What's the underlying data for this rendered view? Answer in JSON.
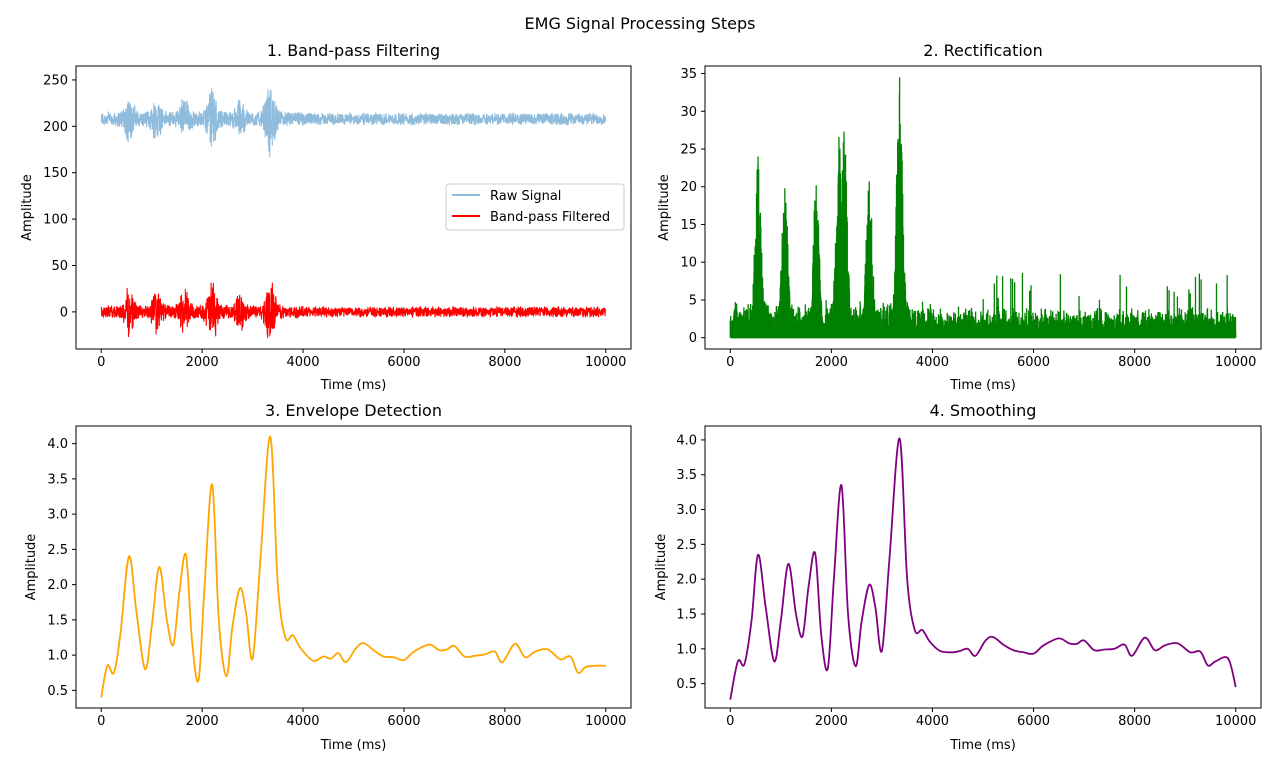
{
  "figure": {
    "suptitle": "EMG Signal Processing Steps"
  },
  "chart_data": [
    {
      "type": "line",
      "title": "1. Band-pass Filtering",
      "xlabel": "Time (ms)",
      "ylabel": "Amplitude",
      "xlim": [
        -500,
        10500
      ],
      "ylim": [
        -40,
        265
      ],
      "xticks": [
        "0",
        "2000",
        "4000",
        "6000",
        "8000",
        "10000"
      ],
      "yticks": [
        "0",
        "50",
        "100",
        "150",
        "200",
        "250"
      ],
      "legend": {
        "placement": "center-right"
      },
      "series": [
        {
          "name": "Raw Signal",
          "color": "#8fbcdc",
          "baseline": 208,
          "bursts": [
            [
              550,
              23
            ],
            [
              1100,
              22
            ],
            [
              1650,
              22
            ],
            [
              2200,
              33
            ],
            [
              2750,
              16
            ],
            [
              3350,
              38
            ]
          ],
          "noise_range": [
            6,
            9
          ],
          "x_range": [
            0,
            10000
          ]
        },
        {
          "name": "Band-pass Filtered",
          "color": "#ff0000",
          "baseline": 0,
          "bursts": [
            [
              550,
              23
            ],
            [
              1100,
              22
            ],
            [
              1650,
              22
            ],
            [
              2200,
              33
            ],
            [
              2750,
              16
            ],
            [
              3350,
              35
            ]
          ],
          "noise_range": [
            5,
            8
          ],
          "x_range": [
            0,
            10000
          ]
        }
      ]
    },
    {
      "type": "line",
      "title": "2. Rectification",
      "xlabel": "Time (ms)",
      "ylabel": "Amplitude",
      "xlim": [
        -500,
        10500
      ],
      "ylim": [
        -1.5,
        36
      ],
      "xticks": [
        "0",
        "2000",
        "4000",
        "6000",
        "8000",
        "10000"
      ],
      "yticks": [
        "0",
        "5",
        "10",
        "15",
        "20",
        "25",
        "30",
        "35"
      ],
      "series": [
        {
          "color": "#008000",
          "peaks": [
            [
              550,
              24
            ],
            [
              1080,
              19.8
            ],
            [
              1700,
              20.2
            ],
            [
              2150,
              26.6
            ],
            [
              2250,
              27.3
            ],
            [
              2750,
              20.7
            ],
            [
              3350,
              34.5
            ]
          ],
          "noise_range": [
            4,
            6
          ],
          "x_range": [
            0,
            10000
          ]
        }
      ]
    },
    {
      "type": "line",
      "title": "3. Envelope Detection",
      "xlabel": "Time (ms)",
      "ylabel": "Amplitude",
      "xlim": [
        -500,
        10500
      ],
      "ylim": [
        0.25,
        4.25
      ],
      "xticks": [
        "0",
        "2000",
        "4000",
        "6000",
        "8000",
        "10000"
      ],
      "yticks": [
        "0.5",
        "1.0",
        "1.5",
        "2.0",
        "2.5",
        "3.0",
        "3.5",
        "4.0"
      ],
      "series": [
        {
          "color": "#ffa500",
          "x": [
            0,
            120,
            250,
            380,
            550,
            700,
            870,
            1000,
            1150,
            1300,
            1430,
            1550,
            1680,
            1800,
            1930,
            2050,
            2200,
            2330,
            2480,
            2600,
            2750,
            2870,
            3000,
            3150,
            3350,
            3500,
            3650,
            3800,
            3950,
            4200,
            4400,
            4550,
            4700,
            4850,
            5050,
            5200,
            5400,
            5600,
            5800,
            6000,
            6200,
            6500,
            6700,
            6850,
            7000,
            7200,
            7400,
            7600,
            7800,
            7950,
            8200,
            8400,
            8600,
            8850,
            9100,
            9300,
            9450,
            9600,
            9800,
            10000
          ],
          "y": [
            0.4,
            0.85,
            0.75,
            1.3,
            2.4,
            1.6,
            0.8,
            1.4,
            2.25,
            1.5,
            1.15,
            1.9,
            2.42,
            1.2,
            0.65,
            2.0,
            3.42,
            1.5,
            0.7,
            1.4,
            1.95,
            1.6,
            0.95,
            2.3,
            4.1,
            2.0,
            1.25,
            1.28,
            1.1,
            0.92,
            0.98,
            0.95,
            1.03,
            0.9,
            1.1,
            1.17,
            1.07,
            0.98,
            0.97,
            0.93,
            1.05,
            1.15,
            1.07,
            1.08,
            1.13,
            0.98,
            0.99,
            1.01,
            1.05,
            0.9,
            1.16,
            0.97,
            1.05,
            1.08,
            0.94,
            0.98,
            0.75,
            0.83,
            0.85,
            0.85
          ]
        }
      ]
    },
    {
      "type": "line",
      "title": "4. Smoothing",
      "xlabel": "Time (ms)",
      "ylabel": "Amplitude",
      "xlim": [
        -500,
        10500
      ],
      "ylim": [
        0.15,
        4.2
      ],
      "xticks": [
        "0",
        "2000",
        "4000",
        "6000",
        "8000",
        "10000"
      ],
      "yticks": [
        "0.5",
        "1.0",
        "1.5",
        "2.0",
        "2.5",
        "3.0",
        "3.5",
        "4.0"
      ],
      "series": [
        {
          "color": "#800080",
          "x": [
            0,
            150,
            280,
            420,
            550,
            700,
            870,
            1000,
            1150,
            1300,
            1430,
            1550,
            1680,
            1800,
            1930,
            2050,
            2200,
            2330,
            2480,
            2600,
            2750,
            2870,
            3000,
            3150,
            3350,
            3500,
            3650,
            3800,
            3950,
            4150,
            4400,
            4550,
            4700,
            4850,
            5050,
            5200,
            5400,
            5600,
            5800,
            6000,
            6200,
            6500,
            6700,
            6850,
            7000,
            7200,
            7400,
            7600,
            7800,
            7950,
            8200,
            8400,
            8600,
            8850,
            9100,
            9300,
            9450,
            9600,
            9850,
            10000
          ],
          "y": [
            0.27,
            0.82,
            0.78,
            1.4,
            2.35,
            1.6,
            0.82,
            1.4,
            2.22,
            1.5,
            1.18,
            1.9,
            2.37,
            1.2,
            0.72,
            2.0,
            3.35,
            1.5,
            0.75,
            1.4,
            1.92,
            1.6,
            0.97,
            2.3,
            4.02,
            2.0,
            1.27,
            1.27,
            1.1,
            0.97,
            0.95,
            0.97,
            1.0,
            0.9,
            1.12,
            1.17,
            1.06,
            0.98,
            0.95,
            0.93,
            1.05,
            1.15,
            1.08,
            1.07,
            1.12,
            0.98,
            0.99,
            1.0,
            1.06,
            0.9,
            1.16,
            0.98,
            1.05,
            1.08,
            0.95,
            0.96,
            0.76,
            0.82,
            0.86,
            0.45
          ]
        }
      ]
    }
  ]
}
